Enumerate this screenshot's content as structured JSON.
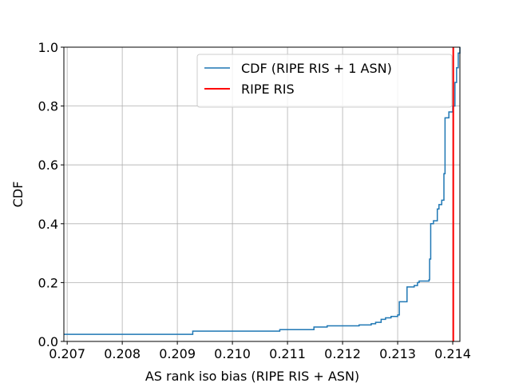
{
  "chart_data": {
    "type": "step",
    "xlabel": "AS rank iso bias (RIPE RIS + ASN)",
    "ylabel": "CDF",
    "xlim": [
      0.20694,
      0.21413
    ],
    "ylim": [
      0,
      1
    ],
    "xticks": [
      0.207,
      0.208,
      0.209,
      0.21,
      0.211,
      0.212,
      0.213,
      0.214
    ],
    "xtick_labels": [
      "0.207",
      "0.208",
      "0.209",
      "0.210",
      "0.211",
      "0.212",
      "0.213",
      "0.214"
    ],
    "yticks": [
      {
        "value": 0,
        "label": "0.0"
      },
      0.2,
      0.4,
      0.6,
      0.8,
      {
        "value": 1,
        "label": "1.0"
      }
    ],
    "grid": true,
    "legend": "upper right",
    "series": [
      {
        "name": "CDF (RIPE RIS + 1 ASN)",
        "color": "#1f77b4",
        "x": [
          0.20694,
          0.20928,
          0.21086,
          0.21148,
          0.21172,
          0.2123,
          0.21252,
          0.2126,
          0.2127,
          0.21278,
          0.21288,
          0.213,
          0.21303,
          0.21312,
          0.21317,
          0.2133,
          0.21336,
          0.21339,
          0.21357,
          0.21358,
          0.2136,
          0.21365,
          0.21372,
          0.21375,
          0.2138,
          0.21384,
          0.21386,
          0.21393,
          0.214,
          0.21404,
          0.21407,
          0.2141,
          0.21413
        ],
        "values": [
          0.024,
          0.035,
          0.04,
          0.049,
          0.053,
          0.056,
          0.06,
          0.065,
          0.075,
          0.08,
          0.085,
          0.09,
          0.135,
          0.135,
          0.185,
          0.19,
          0.2,
          0.205,
          0.21,
          0.28,
          0.4,
          0.41,
          0.45,
          0.465,
          0.48,
          0.57,
          0.76,
          0.78,
          0.8,
          0.88,
          0.93,
          0.98,
          1.0
        ]
      }
    ],
    "vlines": [
      {
        "name": "RIPE RIS",
        "color": "#ff0000",
        "x": 0.21401
      }
    ]
  }
}
